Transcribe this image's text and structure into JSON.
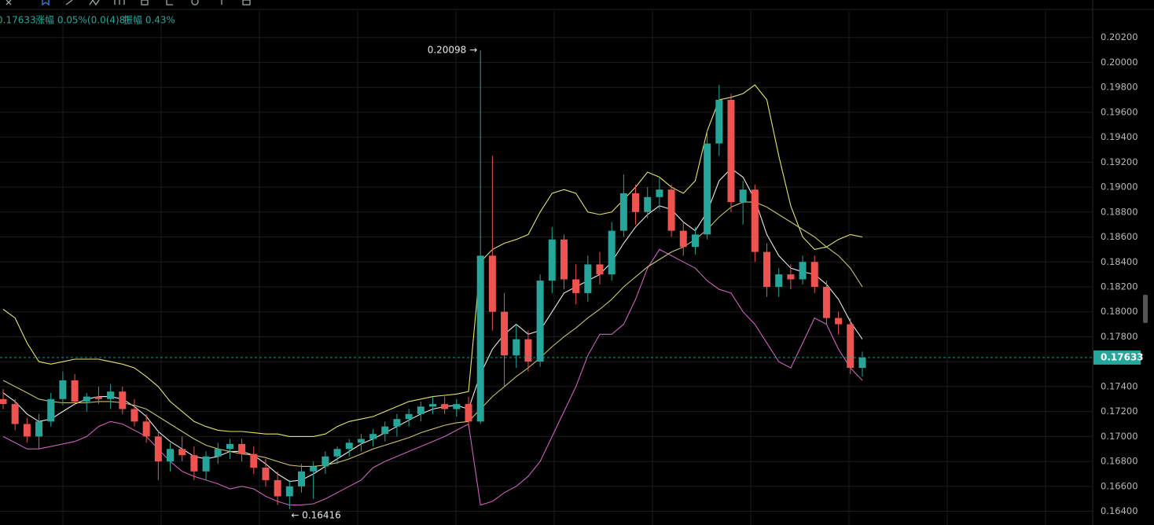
{
  "chart_data": {
    "type": "candlestick",
    "header": {
      "price": "0.17633",
      "change": "涨幅 0.05%(0.0(4)8)",
      "amplitude": "振幅 0.43%"
    },
    "up_color": "#26a69a",
    "down_color": "#ef5350",
    "ylim": [
      0.1629,
      0.2028
    ],
    "yticks": [
      {
        "value": 0.202,
        "label": "0.20200"
      },
      {
        "value": 0.2,
        "label": "0.20000"
      },
      {
        "value": 0.198,
        "label": "0.19800"
      },
      {
        "value": 0.196,
        "label": "0.19600"
      },
      {
        "value": 0.194,
        "label": "0.19400"
      },
      {
        "value": 0.192,
        "label": "0.19200"
      },
      {
        "value": 0.19,
        "label": "0.19000"
      },
      {
        "value": 0.188,
        "label": "0.18800"
      },
      {
        "value": 0.186,
        "label": "0.18600"
      },
      {
        "value": 0.184,
        "label": "0.18400"
      },
      {
        "value": 0.182,
        "label": "0.18200"
      },
      {
        "value": 0.18,
        "label": "0.18000"
      },
      {
        "value": 0.178,
        "label": "0.17800"
      },
      {
        "value": 0.176,
        "label": "0.17600"
      },
      {
        "value": 0.174,
        "label": "0.17400"
      },
      {
        "value": 0.172,
        "label": "0.17200"
      },
      {
        "value": 0.17,
        "label": "0.17000"
      },
      {
        "value": 0.168,
        "label": "0.16800"
      },
      {
        "value": 0.166,
        "label": "0.16600"
      },
      {
        "value": 0.164,
        "label": "0.16400"
      }
    ],
    "grid": true,
    "last_price": {
      "value": 0.17633,
      "label": "0.17633"
    },
    "annotations": [
      {
        "value": 0.20098,
        "label": "0.20098 →",
        "kind": "high"
      },
      {
        "value": 0.16416,
        "label": "← 0.16416",
        "kind": "low"
      }
    ],
    "open": [
      0.173,
      0.1726,
      0.171,
      0.17,
      0.1712,
      0.173,
      0.1745,
      0.1728,
      0.1732,
      0.173,
      0.1736,
      0.1722,
      0.1712,
      0.17,
      0.168,
      0.169,
      0.1685,
      0.1672,
      0.1684,
      0.169,
      0.1694,
      0.1686,
      0.1675,
      0.1665,
      0.1652,
      0.166,
      0.1672,
      0.1676,
      0.1684,
      0.169,
      0.1695,
      0.1698,
      0.1702,
      0.1708,
      0.1714,
      0.1718,
      0.1724,
      0.1726,
      0.1722,
      0.1726,
      0.1712,
      0.1845,
      0.18,
      0.1765,
      0.1778,
      0.176,
      0.1825,
      0.1858,
      0.1826,
      0.1815,
      0.1838,
      0.183,
      0.1865,
      0.1895,
      0.188,
      0.1892,
      0.1898,
      0.1865,
      0.1852,
      0.1862,
      0.1935,
      0.197,
      0.1888,
      0.1898,
      0.1848,
      0.182,
      0.183,
      0.1826,
      0.184,
      0.182,
      0.1795,
      0.179,
      0.1755
    ],
    "high": [
      0.1738,
      0.173,
      0.1715,
      0.1718,
      0.1735,
      0.1752,
      0.175,
      0.1735,
      0.174,
      0.1742,
      0.174,
      0.173,
      0.1718,
      0.1705,
      0.1695,
      0.17,
      0.1692,
      0.1688,
      0.1695,
      0.1698,
      0.1698,
      0.1692,
      0.1682,
      0.1672,
      0.1665,
      0.1678,
      0.168,
      0.1688,
      0.1692,
      0.1698,
      0.1702,
      0.1706,
      0.1712,
      0.1718,
      0.1722,
      0.1728,
      0.1732,
      0.1732,
      0.173,
      0.1732,
      0.20098,
      0.1925,
      0.1815,
      0.179,
      0.1785,
      0.183,
      0.1868,
      0.1862,
      0.1838,
      0.1845,
      0.1848,
      0.1872,
      0.191,
      0.1902,
      0.19,
      0.1908,
      0.1902,
      0.1872,
      0.1868,
      0.1945,
      0.1982,
      0.1975,
      0.1905,
      0.1902,
      0.1855,
      0.1835,
      0.1838,
      0.1845,
      0.1845,
      0.1825,
      0.18,
      0.1795,
      0.1768
    ],
    "low": [
      0.1722,
      0.1705,
      0.1695,
      0.169,
      0.1708,
      0.1725,
      0.1725,
      0.172,
      0.1726,
      0.1722,
      0.1718,
      0.1708,
      0.1695,
      0.1665,
      0.1672,
      0.168,
      0.1665,
      0.1665,
      0.1678,
      0.1682,
      0.168,
      0.167,
      0.166,
      0.1645,
      0.16416,
      0.1655,
      0.165,
      0.167,
      0.1678,
      0.1684,
      0.1688,
      0.1692,
      0.1696,
      0.17,
      0.1708,
      0.1712,
      0.1718,
      0.1718,
      0.1716,
      0.1708,
      0.171,
      0.1785,
      0.174,
      0.1755,
      0.1752,
      0.1756,
      0.1815,
      0.1818,
      0.1806,
      0.1808,
      0.1822,
      0.1825,
      0.186,
      0.187,
      0.1875,
      0.1882,
      0.186,
      0.1845,
      0.1846,
      0.1858,
      0.1925,
      0.188,
      0.187,
      0.184,
      0.1812,
      0.1812,
      0.1818,
      0.1822,
      0.1815,
      0.179,
      0.1782,
      0.175,
      0.1748
    ],
    "close": [
      0.1726,
      0.171,
      0.17,
      0.1712,
      0.173,
      0.1745,
      0.1728,
      0.1732,
      0.173,
      0.1736,
      0.1722,
      0.1712,
      0.17,
      0.168,
      0.169,
      0.1685,
      0.1672,
      0.1684,
      0.169,
      0.1694,
      0.1686,
      0.1675,
      0.1665,
      0.1652,
      0.166,
      0.1672,
      0.1676,
      0.1684,
      0.169,
      0.1695,
      0.1698,
      0.1702,
      0.1708,
      0.1714,
      0.1718,
      0.1724,
      0.1726,
      0.1722,
      0.1726,
      0.1712,
      0.1845,
      0.18,
      0.1765,
      0.1778,
      0.176,
      0.1825,
      0.1858,
      0.1826,
      0.1815,
      0.1838,
      0.183,
      0.1865,
      0.1895,
      0.188,
      0.1892,
      0.1898,
      0.1865,
      0.1852,
      0.1862,
      0.1935,
      0.197,
      0.1888,
      0.1898,
      0.1848,
      0.182,
      0.183,
      0.1826,
      0.184,
      0.182,
      0.1795,
      0.179,
      0.1755,
      0.17633
    ],
    "lines": [
      {
        "color": "#e6e36a",
        "values": [
          0.1802,
          0.1795,
          0.1775,
          0.176,
          0.1758,
          0.176,
          0.1762,
          0.1762,
          0.1762,
          0.176,
          0.1758,
          0.1755,
          0.1748,
          0.174,
          0.1728,
          0.172,
          0.1712,
          0.1708,
          0.1705,
          0.1704,
          0.1704,
          0.1703,
          0.1702,
          0.1702,
          0.17,
          0.17,
          0.17,
          0.1702,
          0.1708,
          0.1712,
          0.1714,
          0.1716,
          0.172,
          0.1724,
          0.1728,
          0.173,
          0.1732,
          0.1733,
          0.1734,
          0.1736,
          0.184,
          0.185,
          0.1855,
          0.1858,
          0.1862,
          0.188,
          0.1895,
          0.1898,
          0.1895,
          0.188,
          0.1878,
          0.188,
          0.189,
          0.19,
          0.1912,
          0.1908,
          0.19,
          0.1895,
          0.1905,
          0.1945,
          0.197,
          0.1972,
          0.1975,
          0.1982,
          0.197,
          0.1925,
          0.1885,
          0.186,
          0.185,
          0.1852,
          0.1858,
          0.1862,
          0.186
        ]
      },
      {
        "color": "#d05fc0",
        "values": [
          0.17,
          0.1695,
          0.169,
          0.169,
          0.1692,
          0.1694,
          0.1696,
          0.17,
          0.1708,
          0.1712,
          0.171,
          0.1705,
          0.17,
          0.169,
          0.168,
          0.1672,
          0.1668,
          0.1665,
          0.1662,
          0.1658,
          0.166,
          0.1658,
          0.1652,
          0.1648,
          0.1645,
          0.1645,
          0.1646,
          0.165,
          0.1655,
          0.166,
          0.1665,
          0.1675,
          0.168,
          0.1684,
          0.1688,
          0.1692,
          0.1696,
          0.17,
          0.1705,
          0.171,
          0.1645,
          0.1648,
          0.1655,
          0.166,
          0.1668,
          0.168,
          0.17,
          0.172,
          0.174,
          0.1765,
          0.1782,
          0.1782,
          0.179,
          0.181,
          0.1835,
          0.185,
          0.1845,
          0.184,
          0.1835,
          0.1825,
          0.1818,
          0.1815,
          0.18,
          0.179,
          0.1775,
          0.176,
          0.1755,
          0.1775,
          0.1795,
          0.179,
          0.177,
          0.1755,
          0.1745
        ]
      },
      {
        "color": "#e8e8e8",
        "values": [
          0.1735,
          0.1728,
          0.1718,
          0.1712,
          0.1714,
          0.172,
          0.1726,
          0.173,
          0.1732,
          0.1732,
          0.173,
          0.1724,
          0.1716,
          0.1704,
          0.1696,
          0.169,
          0.1684,
          0.1682,
          0.1684,
          0.1688,
          0.1688,
          0.1685,
          0.1678,
          0.167,
          0.1664,
          0.1665,
          0.167,
          0.1676,
          0.1682,
          0.1688,
          0.1694,
          0.1698,
          0.1703,
          0.1708,
          0.1713,
          0.1718,
          0.1722,
          0.1724,
          0.1725,
          0.1722,
          0.175,
          0.177,
          0.1782,
          0.179,
          0.1782,
          0.1785,
          0.18,
          0.1815,
          0.182,
          0.1825,
          0.183,
          0.184,
          0.1855,
          0.1868,
          0.1878,
          0.1885,
          0.1882,
          0.1872,
          0.1865,
          0.188,
          0.1905,
          0.1915,
          0.1908,
          0.189,
          0.1862,
          0.1845,
          0.1835,
          0.1832,
          0.183,
          0.1822,
          0.181,
          0.1792,
          0.1778
        ]
      },
      {
        "color": "#c9c26a",
        "values": [
          0.1745,
          0.174,
          0.1735,
          0.173,
          0.1728,
          0.1727,
          0.1727,
          0.1727,
          0.1728,
          0.1728,
          0.1727,
          0.1725,
          0.1722,
          0.1716,
          0.171,
          0.1704,
          0.1698,
          0.1693,
          0.169,
          0.1688,
          0.1686,
          0.1685,
          0.1683,
          0.168,
          0.1677,
          0.1676,
          0.1676,
          0.1677,
          0.1679,
          0.1682,
          0.1686,
          0.169,
          0.1693,
          0.1696,
          0.1699,
          0.1703,
          0.1706,
          0.1709,
          0.1711,
          0.1712,
          0.1722,
          0.1732,
          0.174,
          0.1748,
          0.1755,
          0.1763,
          0.1772,
          0.178,
          0.1787,
          0.1795,
          0.1802,
          0.181,
          0.182,
          0.1828,
          0.1836,
          0.1842,
          0.1848,
          0.1852,
          0.1858,
          0.1866,
          0.1876,
          0.1884,
          0.1888,
          0.1888,
          0.1884,
          0.1878,
          0.1872,
          0.1866,
          0.186,
          0.1852,
          0.1845,
          0.1835,
          0.182
        ]
      }
    ]
  }
}
